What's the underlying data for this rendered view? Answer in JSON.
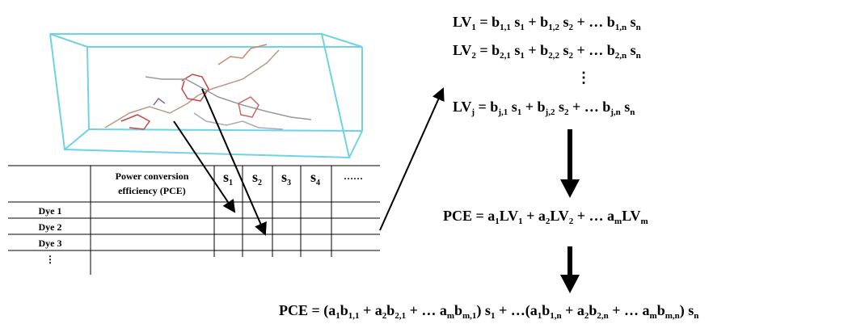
{
  "equations": {
    "lv1": [
      "LV",
      {
        "sub": "1"
      },
      " = b",
      {
        "sub": "1,1"
      },
      " s",
      {
        "sub": "1"
      },
      " + b",
      {
        "sub": "1,2"
      },
      " s",
      {
        "sub": "2"
      },
      " + … b",
      {
        "sub": "1,n"
      },
      " s",
      {
        "sub": "n"
      }
    ],
    "lv2": [
      "LV",
      {
        "sub": "2"
      },
      " = b",
      {
        "sub": "2,1"
      },
      " s",
      {
        "sub": "1"
      },
      " + b",
      {
        "sub": "2,2"
      },
      " s",
      {
        "sub": "2"
      },
      " + … b",
      {
        "sub": "2,n"
      },
      " s",
      {
        "sub": "n"
      }
    ],
    "vdots": "⋮",
    "lvj": [
      "LV",
      {
        "sub": "j"
      },
      " = b",
      {
        "sub": "j,1"
      },
      " s",
      {
        "sub": "1"
      },
      " + b",
      {
        "sub": "j,2"
      },
      " s",
      {
        "sub": "2"
      },
      " + … b",
      {
        "sub": "j,n"
      },
      " s",
      {
        "sub": "n"
      }
    ],
    "pce": [
      "PCE = a",
      {
        "sub": "1"
      },
      "LV",
      {
        "sub": "1"
      },
      " + a",
      {
        "sub": "2"
      },
      "LV",
      {
        "sub": "2"
      },
      " + … a",
      {
        "sub": "m"
      },
      "LV",
      {
        "sub": "m"
      }
    ],
    "final": [
      "PCE = (a",
      {
        "sub": "1"
      },
      "b",
      {
        "sub": "1,1"
      },
      " + a",
      {
        "sub": "2"
      },
      "b",
      {
        "sub": "2,1"
      },
      " + … a",
      {
        "sub": "m"
      },
      "b",
      {
        "sub": "m,1"
      },
      ") s",
      {
        "sub": "1"
      },
      " + …(a",
      {
        "sub": "1"
      },
      "b",
      {
        "sub": "1,n"
      },
      " + a",
      {
        "sub": "2"
      },
      "b",
      {
        "sub": "2,n"
      },
      " + … a",
      {
        "sub": "m"
      },
      "b",
      {
        "sub": "m,n"
      },
      ") s",
      {
        "sub": "n"
      }
    ]
  },
  "table": {
    "pce_header": [
      "Power conversion",
      "efficiency (PCE)"
    ],
    "s_columns": [
      [
        "s",
        {
          "sub": "1"
        }
      ],
      [
        "s",
        {
          "sub": "2"
        }
      ],
      [
        "s",
        {
          "sub": "3"
        }
      ],
      [
        "s",
        {
          "sub": "4"
        }
      ]
    ],
    "more": "……",
    "rows": [
      "Dye 1",
      "Dye 2",
      "Dye 3",
      "⋮"
    ]
  }
}
